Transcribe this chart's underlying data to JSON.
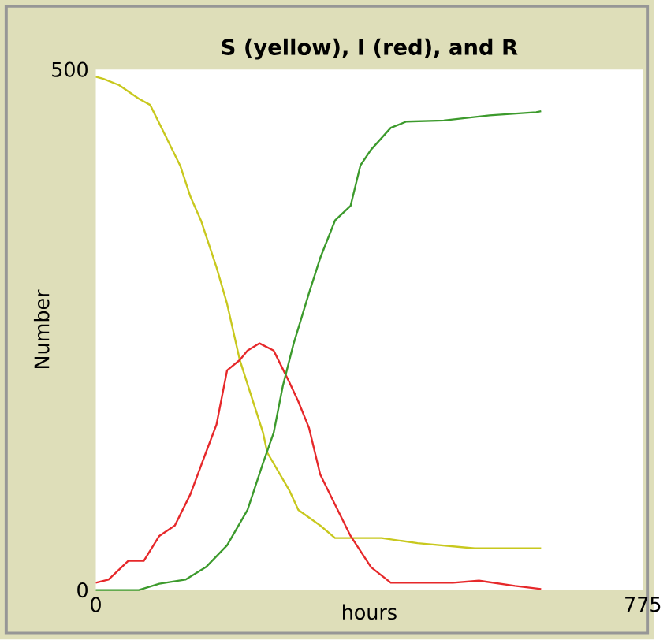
{
  "chart_data": {
    "type": "line",
    "title": "S (yellow), I (red), and R",
    "xlabel": "hours",
    "ylabel": "Number",
    "xlim": [
      0,
      775
    ],
    "ylim": [
      0,
      500
    ],
    "xticks": [
      0,
      775
    ],
    "yticks": [
      0,
      500
    ],
    "series": [
      {
        "color": "#c8c81e",
        "x": [
          0,
          11,
          33,
          61,
          77,
          99,
          120,
          134,
          149,
          171,
          186,
          204,
          221,
          237,
          243,
          274,
          287,
          318,
          339,
          405,
          456,
          537,
          631
        ],
        "values": [
          493,
          491,
          485,
          472,
          466,
          436,
          407,
          378,
          355,
          310,
          275,
          221,
          185,
          151,
          132,
          96,
          77,
          62,
          50,
          50,
          45,
          40,
          40
        ]
      },
      {
        "color": "#e6282a",
        "x": [
          0,
          18,
          46,
          68,
          90,
          112,
          134,
          156,
          171,
          186,
          204,
          215,
          232,
          252,
          263,
          274,
          287,
          302,
          318,
          339,
          361,
          390,
          418,
          506,
          543,
          594,
          631
        ],
        "values": [
          7,
          10,
          28,
          28,
          52,
          62,
          92,
          132,
          159,
          211,
          221,
          230,
          237,
          230,
          215,
          200,
          181,
          156,
          111,
          82,
          52,
          22,
          7,
          7,
          9,
          4,
          1
        ]
      },
      {
        "color": "#3c9a2c",
        "x": [
          0,
          61,
          90,
          127,
          156,
          186,
          215,
          237,
          252,
          265,
          280,
          302,
          318,
          339,
          361,
          375,
          390,
          418,
          440,
          493,
          558,
          624,
          631
        ],
        "values": [
          0,
          0,
          6,
          10,
          22,
          43,
          77,
          122,
          151,
          196,
          236,
          285,
          319,
          355,
          369,
          408,
          423,
          444,
          450,
          451,
          456,
          459,
          460
        ]
      }
    ]
  }
}
